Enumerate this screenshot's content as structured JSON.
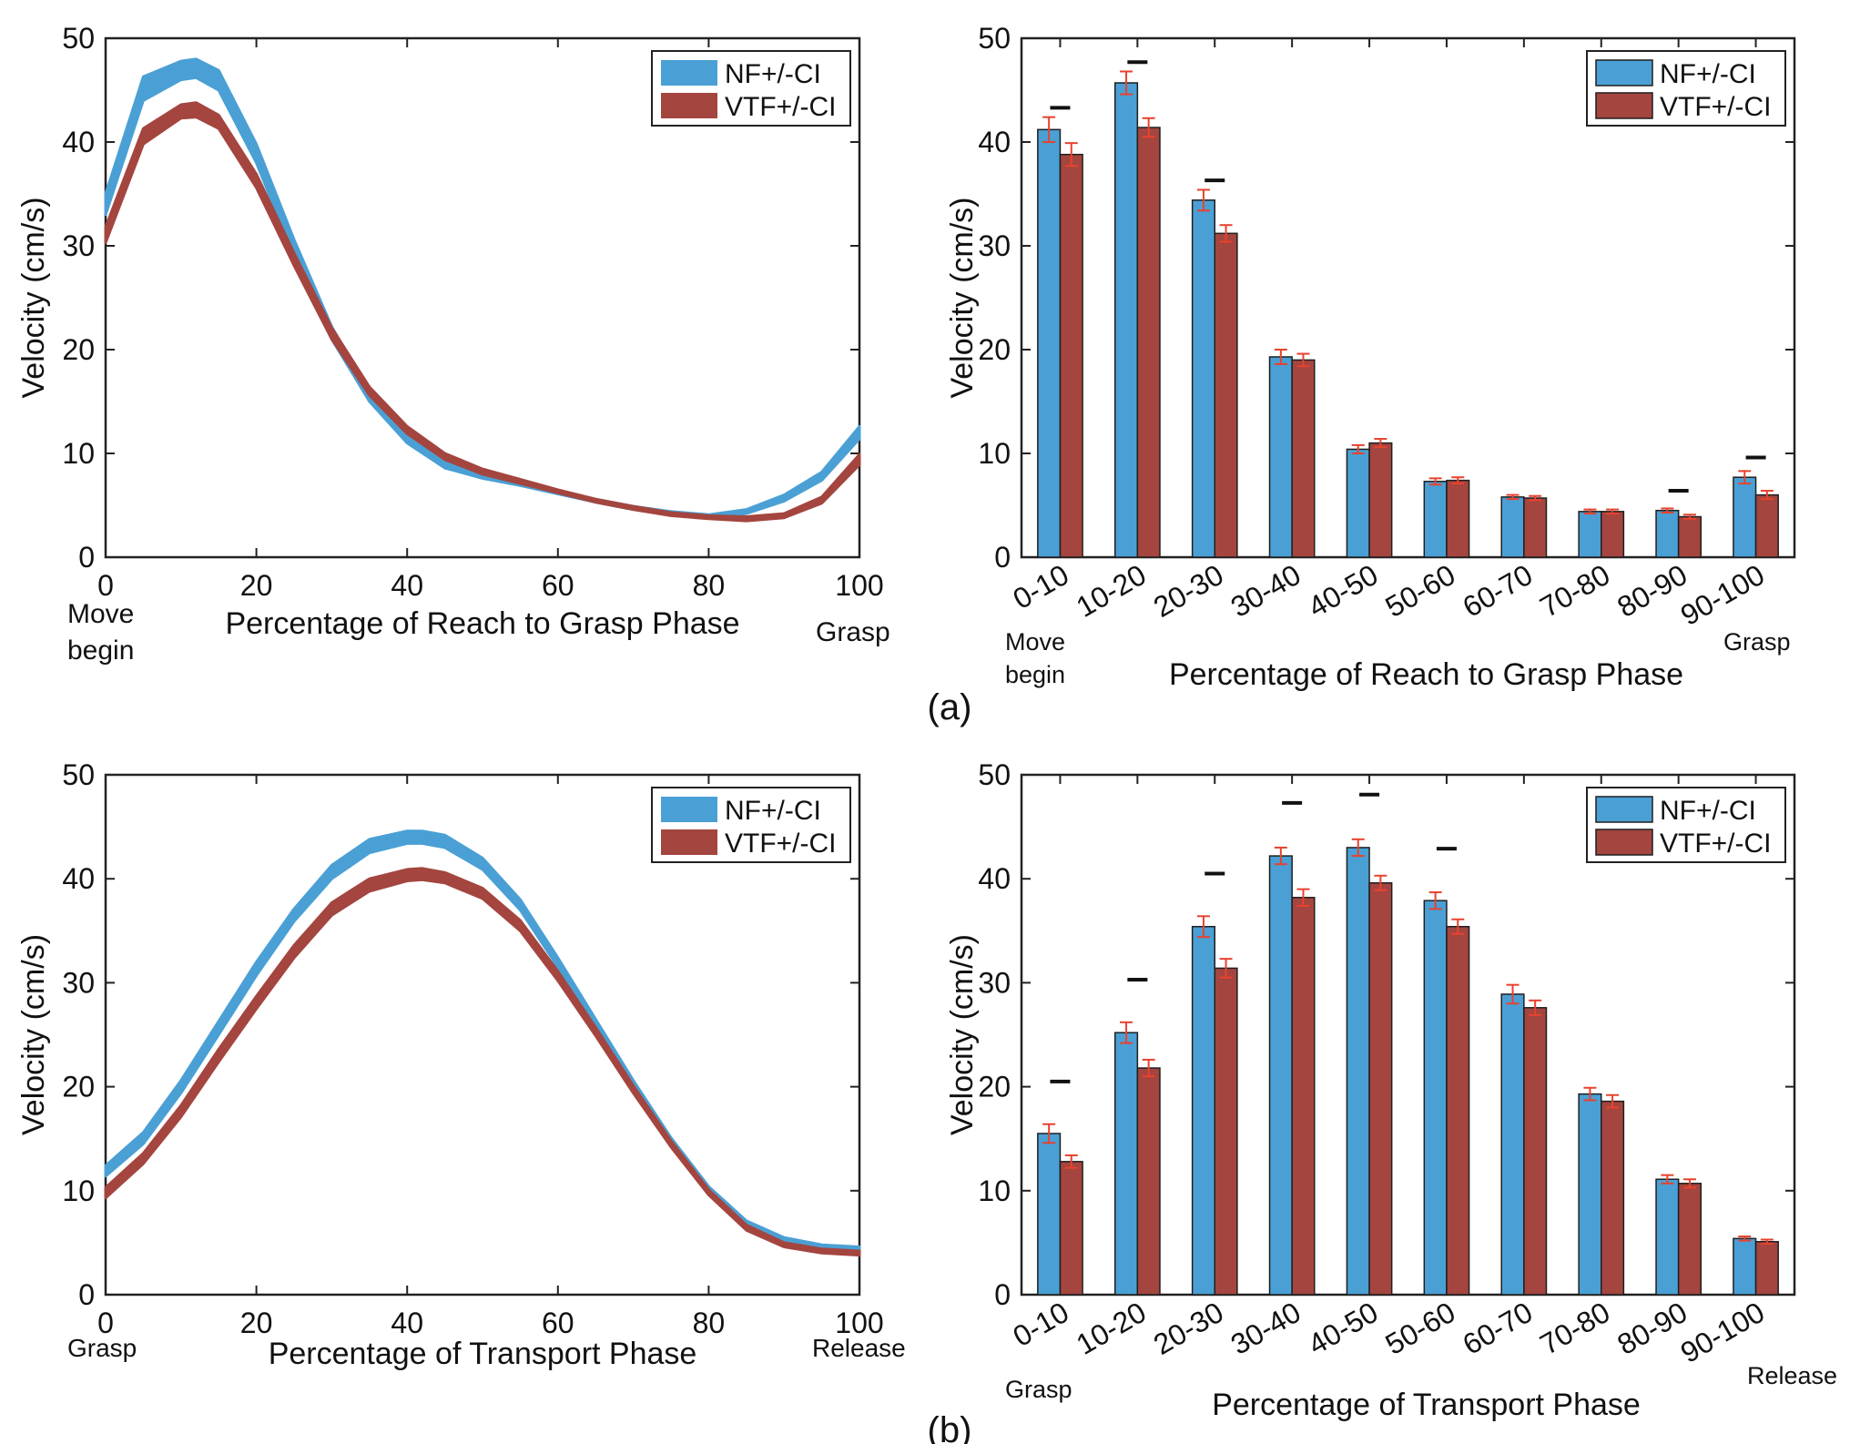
{
  "colors": {
    "nf": "#4aa0d5",
    "vtf": "#a4453f",
    "errorbar": "#e8422e",
    "axis": "#222222",
    "sigbar": "#111111"
  },
  "panel_labels": [
    "(a)",
    "(b)"
  ],
  "chart_data": [
    {
      "id": "reach-velocity-curve",
      "type": "area",
      "title": "",
      "xlabel": "Percentage of Reach to Grasp Phase",
      "ylabel": "Velocity (cm/s)",
      "xlim": [
        0,
        100
      ],
      "ylim": [
        0,
        50
      ],
      "xticks": [
        0,
        20,
        40,
        60,
        80,
        100
      ],
      "yticks": [
        0,
        10,
        20,
        30,
        40,
        50
      ],
      "start_label": "Move begin",
      "end_label": "Grasp",
      "legend": [
        "NF+/-CI",
        "VTF+/-CI"
      ],
      "legend_position": "top-right",
      "series": [
        {
          "name": "NF+/-CI",
          "x": [
            0,
            5,
            10,
            12,
            15,
            20,
            25,
            30,
            35,
            40,
            45,
            50,
            55,
            60,
            65,
            70,
            75,
            80,
            85,
            90,
            95,
            100
          ],
          "lower": [
            33.0,
            44.0,
            46.0,
            46.2,
            45.0,
            38.0,
            29.0,
            21.0,
            15.0,
            11.0,
            8.6,
            7.6,
            6.9,
            6.1,
            5.3,
            4.6,
            4.1,
            3.8,
            4.2,
            5.4,
            7.4,
            11.4
          ],
          "upper": [
            35.0,
            46.3,
            47.8,
            48.0,
            46.9,
            39.8,
            30.6,
            22.2,
            15.9,
            11.6,
            9.2,
            8.0,
            7.2,
            6.4,
            5.6,
            4.9,
            4.4,
            4.1,
            4.6,
            6.0,
            8.2,
            12.6
          ]
        },
        {
          "name": "VTF+/-CI",
          "x": [
            0,
            5,
            10,
            12,
            15,
            20,
            25,
            30,
            35,
            40,
            45,
            50,
            55,
            60,
            65,
            70,
            75,
            80,
            85,
            90,
            95,
            100
          ],
          "lower": [
            30.3,
            39.8,
            42.3,
            42.4,
            41.3,
            35.6,
            28.1,
            21.0,
            15.6,
            11.9,
            9.4,
            8.0,
            7.1,
            6.2,
            5.3,
            4.6,
            4.0,
            3.7,
            3.5,
            3.8,
            5.2,
            8.9
          ],
          "upper": [
            31.8,
            41.3,
            43.6,
            43.8,
            42.6,
            36.9,
            29.3,
            22.1,
            16.4,
            12.6,
            10.0,
            8.5,
            7.5,
            6.5,
            5.6,
            4.9,
            4.3,
            4.0,
            3.9,
            4.2,
            5.8,
            9.9
          ]
        }
      ]
    },
    {
      "id": "reach-velocity-bars",
      "type": "bar",
      "title": "",
      "xlabel": "Percentage of Reach to Grasp Phase",
      "ylabel": "Velocity (cm/s)",
      "ylim": [
        0,
        50
      ],
      "yticks": [
        0,
        10,
        20,
        30,
        40,
        50
      ],
      "categories": [
        "0-10",
        "10-20",
        "20-30",
        "30-40",
        "40-50",
        "50-60",
        "60-70",
        "70-80",
        "80-90",
        "90-100"
      ],
      "start_label": "Move begin",
      "end_label": "Grasp",
      "legend": [
        "NF+/-CI",
        "VTF+/-CI"
      ],
      "legend_position": "top-right",
      "series": [
        {
          "name": "NF+/-CI",
          "values": [
            41.2,
            45.7,
            34.4,
            19.3,
            10.4,
            7.3,
            5.8,
            4.4,
            4.5,
            7.7
          ],
          "ci": [
            1.2,
            1.1,
            1.0,
            0.7,
            0.4,
            0.3,
            0.2,
            0.2,
            0.2,
            0.6
          ]
        },
        {
          "name": "VTF+/-CI",
          "values": [
            38.8,
            41.4,
            31.2,
            19.0,
            11.0,
            7.4,
            5.7,
            4.4,
            3.9,
            6.0
          ],
          "ci": [
            1.1,
            0.9,
            0.8,
            0.6,
            0.4,
            0.3,
            0.2,
            0.2,
            0.2,
            0.4
          ]
        }
      ],
      "significance": [
        43.3,
        47.7,
        36.3,
        null,
        null,
        null,
        null,
        null,
        6.4,
        9.6
      ]
    },
    {
      "id": "transport-velocity-curve",
      "type": "area",
      "title": "",
      "xlabel": "Percentage of Transport Phase",
      "ylabel": "Velocity (cm/s)",
      "xlim": [
        0,
        100
      ],
      "ylim": [
        0,
        50
      ],
      "xticks": [
        0,
        20,
        40,
        60,
        80,
        100
      ],
      "yticks": [
        0,
        10,
        20,
        30,
        40,
        50
      ],
      "start_label": "Grasp",
      "end_label": "Release",
      "legend": [
        "NF+/-CI",
        "VTF+/-CI"
      ],
      "legend_position": "top-right",
      "series": [
        {
          "name": "NF+/-CI",
          "x": [
            0,
            5,
            10,
            15,
            20,
            25,
            30,
            35,
            40,
            42,
            45,
            50,
            55,
            60,
            65,
            70,
            75,
            80,
            85,
            90,
            95,
            100
          ],
          "lower": [
            11.4,
            14.5,
            19.4,
            25.0,
            30.7,
            35.9,
            40.0,
            42.5,
            43.4,
            43.4,
            43.0,
            40.9,
            37.0,
            31.5,
            25.7,
            19.9,
            14.5,
            9.8,
            6.5,
            4.9,
            4.3,
            4.1
          ],
          "upper": [
            12.4,
            15.6,
            20.6,
            26.3,
            32.0,
            37.1,
            41.3,
            43.8,
            44.6,
            44.6,
            44.2,
            42.0,
            38.0,
            32.4,
            26.5,
            20.6,
            15.1,
            10.4,
            7.1,
            5.5,
            4.8,
            4.6
          ]
        },
        {
          "name": "VTF+/-CI",
          "x": [
            0,
            5,
            10,
            15,
            20,
            25,
            30,
            35,
            40,
            42,
            45,
            50,
            55,
            60,
            65,
            70,
            75,
            80,
            85,
            90,
            95,
            100
          ],
          "lower": [
            9.3,
            12.6,
            17.1,
            22.4,
            27.5,
            32.4,
            36.5,
            38.8,
            39.8,
            39.9,
            39.6,
            38.1,
            35.0,
            30.2,
            24.9,
            19.4,
            14.2,
            9.6,
            6.2,
            4.6,
            4.0,
            3.8
          ],
          "upper": [
            10.3,
            13.6,
            18.2,
            23.6,
            28.7,
            33.6,
            37.7,
            40.0,
            40.9,
            41.0,
            40.6,
            39.1,
            36.0,
            31.1,
            25.7,
            20.1,
            14.8,
            10.1,
            6.7,
            5.0,
            4.4,
            4.2
          ]
        }
      ]
    },
    {
      "id": "transport-velocity-bars",
      "type": "bar",
      "title": "",
      "xlabel": "Percentage of Transport Phase",
      "ylabel": "Velocity (cm/s)",
      "ylim": [
        0,
        50
      ],
      "yticks": [
        0,
        10,
        20,
        30,
        40,
        50
      ],
      "categories": [
        "0-10",
        "10-20",
        "20-30",
        "30-40",
        "40-50",
        "50-60",
        "60-70",
        "70-80",
        "80-90",
        "90-100"
      ],
      "start_label": "Grasp",
      "end_label": "Release",
      "legend": [
        "NF+/-CI",
        "VTF+/-CI"
      ],
      "legend_position": "top-right",
      "series": [
        {
          "name": "NF+/-CI",
          "values": [
            15.5,
            25.2,
            35.4,
            42.2,
            43.0,
            37.9,
            28.9,
            19.3,
            11.1,
            5.4
          ],
          "ci": [
            0.9,
            1.0,
            1.0,
            0.8,
            0.8,
            0.8,
            0.9,
            0.6,
            0.4,
            0.2
          ]
        },
        {
          "name": "VTF+/-CI",
          "values": [
            12.8,
            21.8,
            31.4,
            38.2,
            39.6,
            35.4,
            27.6,
            18.6,
            10.7,
            5.1
          ],
          "ci": [
            0.6,
            0.8,
            0.9,
            0.8,
            0.7,
            0.7,
            0.7,
            0.6,
            0.4,
            0.2
          ]
        }
      ],
      "significance": [
        20.5,
        30.3,
        40.5,
        47.3,
        48.1,
        42.9,
        null,
        null,
        null,
        null
      ]
    }
  ]
}
